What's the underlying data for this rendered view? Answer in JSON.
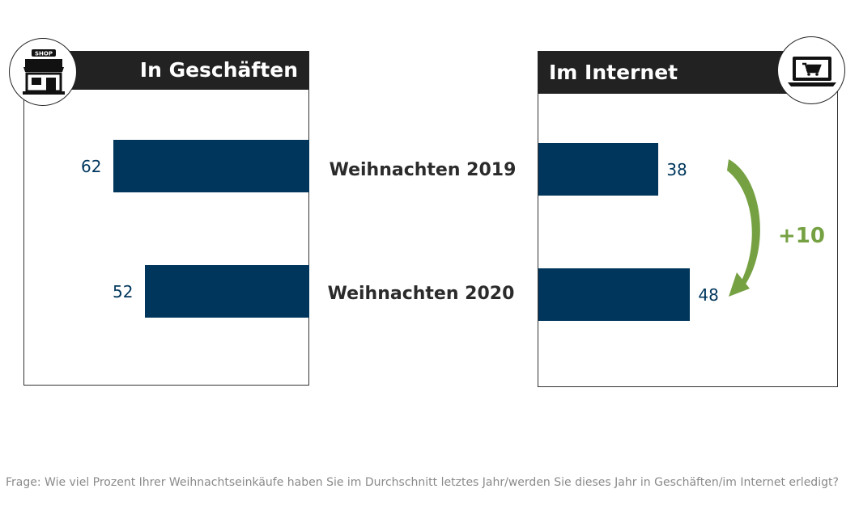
{
  "chart_data": {
    "type": "bar",
    "categories": [
      "Weihnachten 2019",
      "Weihnachten 2020"
    ],
    "unit": "%",
    "panels": [
      {
        "name": "In Geschäften",
        "orientation": "left",
        "values": [
          62,
          52
        ]
      },
      {
        "name": "Im Internet",
        "orientation": "right",
        "values": [
          38,
          48
        ]
      }
    ],
    "annotation": {
      "label": "+10"
    }
  },
  "icons": {
    "left": "shop-icon",
    "right": "laptop-cart-icon",
    "shop_sign": "SHOP"
  },
  "colors": {
    "bar": "#00365c",
    "value_text": "#00365c",
    "delta": "#76a143",
    "header_bg": "#222222"
  },
  "footnote": "Frage: Wie viel Prozent Ihrer Weihnachtseinkäufe haben Sie im Durchschnitt letztes Jahr/werden Sie dieses Jahr in Geschäften/im Internet erledigt?"
}
